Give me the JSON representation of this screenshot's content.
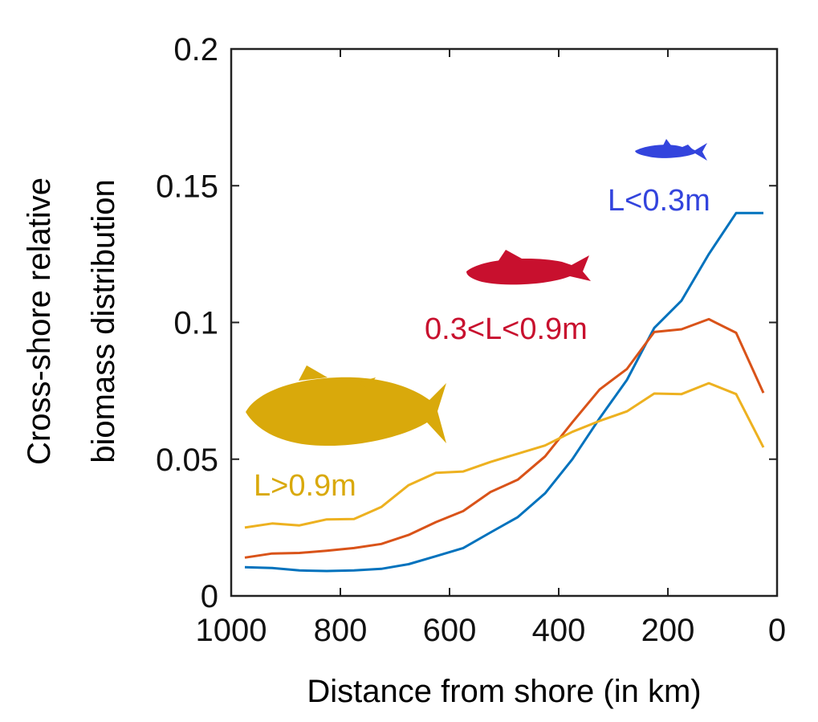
{
  "chart_data": {
    "type": "line",
    "xlabel": "Distance from shore (in km)",
    "ylabel_lines": [
      "Cross-shore relative",
      "biomass distribution"
    ],
    "xlim": [
      1000,
      0
    ],
    "ylim": [
      0,
      0.2
    ],
    "x_reversed": true,
    "x_ticks": [
      1000,
      800,
      600,
      400,
      200,
      0
    ],
    "x_tick_labels": [
      "1000",
      "800",
      "600",
      "400",
      "200",
      "0"
    ],
    "y_ticks": [
      0,
      0.05,
      0.1,
      0.15,
      0.2
    ],
    "y_tick_labels": [
      "0",
      "0.05",
      "0.1",
      "0.15",
      "0.2"
    ],
    "grid": false,
    "x": [
      975,
      925,
      875,
      825,
      775,
      725,
      675,
      625,
      575,
      525,
      475,
      425,
      375,
      325,
      275,
      225,
      175,
      125,
      75,
      25
    ],
    "series": [
      {
        "name": "L<0.3m",
        "color": "#0072BD",
        "label_color": "#3344DD",
        "icon": "small-fish-icon",
        "values": [
          0.0105,
          0.0102,
          0.0093,
          0.0091,
          0.0093,
          0.0099,
          0.0116,
          0.0145,
          0.0175,
          0.0232,
          0.0288,
          0.0375,
          0.05,
          0.065,
          0.079,
          0.098,
          0.108,
          0.125,
          0.14,
          0.14
        ]
      },
      {
        "name": "0.3<L<0.9m",
        "color": "#D95319",
        "label_color": "#C8102E",
        "icon": "medium-fish-icon",
        "values": [
          0.014,
          0.0155,
          0.0157,
          0.0165,
          0.0175,
          0.019,
          0.0223,
          0.027,
          0.031,
          0.038,
          0.0425,
          0.051,
          0.0635,
          0.0755,
          0.083,
          0.0965,
          0.0975,
          0.1012,
          0.0962,
          0.0742
        ]
      },
      {
        "name": "L>0.9m",
        "color": "#EDB120",
        "label_color": "#D9A90B",
        "icon": "large-fish-icon",
        "values": [
          0.025,
          0.0265,
          0.0258,
          0.028,
          0.0281,
          0.0325,
          0.0405,
          0.045,
          0.0455,
          0.049,
          0.052,
          0.055,
          0.06,
          0.064,
          0.0675,
          0.074,
          0.0738,
          0.0778,
          0.0738,
          0.0543
        ]
      }
    ]
  }
}
